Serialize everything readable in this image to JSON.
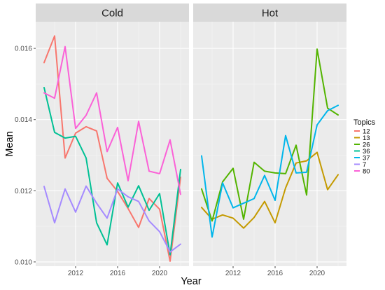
{
  "chart_data": {
    "type": "line",
    "xlabel": "Year",
    "ylabel": "Mean",
    "xlim": [
      2008.2,
      2022.8
    ],
    "ylim": [
      0.00988,
      0.01675
    ],
    "x_ticks": [
      2012,
      2016,
      2020
    ],
    "y_ticks": [
      0.01,
      0.012,
      0.014,
      0.016
    ],
    "y_tick_labels": [
      "0.010",
      "0.012",
      "0.014",
      "0.016"
    ],
    "legend": {
      "title": "Topics",
      "position": "right"
    },
    "grid": true,
    "series_meta": [
      {
        "name": "12",
        "color": "#F8766D"
      },
      {
        "name": "13",
        "color": "#C49A00"
      },
      {
        "name": "26",
        "color": "#53B400"
      },
      {
        "name": "36",
        "color": "#00C094"
      },
      {
        "name": "37",
        "color": "#00B6EB"
      },
      {
        "name": "7",
        "color": "#A58AFF"
      },
      {
        "name": "80",
        "color": "#FB61D7"
      }
    ],
    "panels": [
      {
        "title": "Cold",
        "x": [
          2009,
          2010,
          2011,
          2012,
          2013,
          2014,
          2015,
          2016,
          2017,
          2018,
          2019,
          2020,
          2021,
          2022
        ],
        "series": [
          {
            "name": "12",
            "values": [
              0.0156,
              0.01635,
              0.01292,
              0.01362,
              0.0138,
              0.01368,
              0.01235,
              0.01198,
              0.0115,
              0.01097,
              0.01178,
              0.01148,
              0.01002,
              0.01238
            ]
          },
          {
            "name": "36",
            "values": [
              0.0149,
              0.01364,
              0.01348,
              0.01353,
              0.01292,
              0.0111,
              0.01048,
              0.01222,
              0.01154,
              0.01214,
              0.01145,
              0.01192,
              0.0102,
              0.0126
            ]
          },
          {
            "name": "7",
            "values": [
              0.01212,
              0.0111,
              0.01205,
              0.0114,
              0.01213,
              0.01165,
              0.01123,
              0.01205,
              0.01183,
              0.0117,
              0.01115,
              0.01085,
              0.01028,
              0.0105
            ]
          },
          {
            "name": "80",
            "values": [
              0.01475,
              0.0146,
              0.01605,
              0.01375,
              0.01412,
              0.01475,
              0.0131,
              0.01378,
              0.01228,
              0.01395,
              0.01255,
              0.01248,
              0.01343,
              0.0119
            ]
          }
        ]
      },
      {
        "title": "Hot",
        "x": [
          2009,
          2010,
          2011,
          2012,
          2013,
          2014,
          2015,
          2016,
          2017,
          2018,
          2019,
          2020,
          2021,
          2022
        ],
        "series": [
          {
            "name": "13",
            "values": [
              0.01153,
              0.0112,
              0.01132,
              0.01123,
              0.01095,
              0.01125,
              0.0117,
              0.0111,
              0.01208,
              0.01278,
              0.01284,
              0.01308,
              0.01203,
              0.01245
            ]
          },
          {
            "name": "26",
            "values": [
              0.01205,
              0.01115,
              0.01225,
              0.01263,
              0.0112,
              0.0128,
              0.01255,
              0.0125,
              0.01248,
              0.01328,
              0.01188,
              0.01598,
              0.01432,
              0.01413
            ]
          },
          {
            "name": "37",
            "values": [
              0.01298,
              0.0107,
              0.01222,
              0.01152,
              0.01165,
              0.01178,
              0.01243,
              0.01173,
              0.01355,
              0.0125,
              0.01252,
              0.01385,
              0.01425,
              0.0144
            ]
          }
        ]
      }
    ]
  }
}
